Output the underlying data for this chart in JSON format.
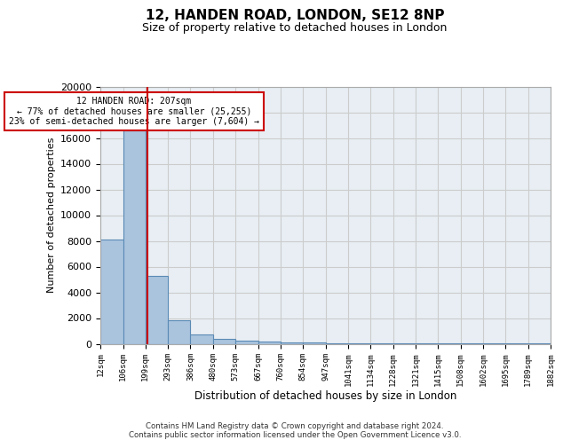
{
  "title": "12, HANDEN ROAD, LONDON, SE12 8NP",
  "subtitle": "Size of property relative to detached houses in London",
  "xlabel": "Distribution of detached houses by size in London",
  "ylabel": "Number of detached properties",
  "bin_edges": [
    12,
    106,
    199,
    293,
    386,
    480,
    573,
    667,
    760,
    854,
    947,
    1041,
    1134,
    1228,
    1321,
    1415,
    1508,
    1602,
    1695,
    1789,
    1882
  ],
  "bar_heights": [
    8100,
    16600,
    5300,
    1800,
    700,
    350,
    250,
    150,
    100,
    70,
    50,
    35,
    25,
    20,
    15,
    10,
    8,
    6,
    5,
    4
  ],
  "bar_color": "#aac4de",
  "bar_edge_color": "#5a8ab5",
  "ylim": [
    0,
    20000
  ],
  "yticks": [
    0,
    2000,
    4000,
    6000,
    8000,
    10000,
    12000,
    14000,
    16000,
    18000,
    20000
  ],
  "property_size": 207,
  "red_line_color": "#cc0000",
  "annotation_text": "12 HANDEN ROAD: 207sqm\n← 77% of detached houses are smaller (25,255)\n23% of semi-detached houses are larger (7,604) →",
  "annotation_box_color": "#cc0000",
  "grid_color": "#cccccc",
  "background_color": "#e8eef4",
  "footer_text": "Contains HM Land Registry data © Crown copyright and database right 2024.\nContains public sector information licensed under the Open Government Licence v3.0.",
  "tick_labels": [
    "12sqm",
    "106sqm",
    "199sqm",
    "293sqm",
    "386sqm",
    "480sqm",
    "573sqm",
    "667sqm",
    "760sqm",
    "854sqm",
    "947sqm",
    "1041sqm",
    "1134sqm",
    "1228sqm",
    "1321sqm",
    "1415sqm",
    "1508sqm",
    "1602sqm",
    "1695sqm",
    "1789sqm",
    "1882sqm"
  ]
}
